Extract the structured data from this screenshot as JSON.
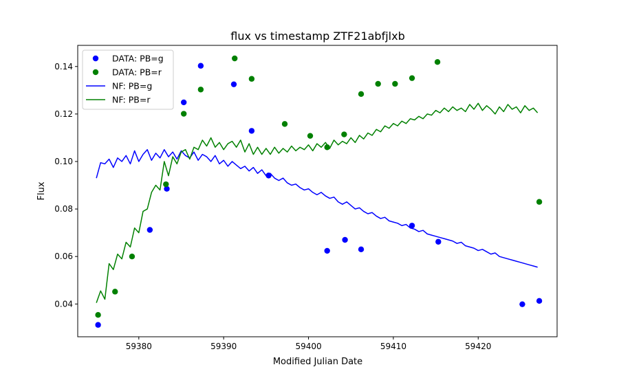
{
  "chart_data": {
    "type": "scatter",
    "title": "flux vs timestamp ZTF21abfjlxb",
    "xlabel": "Modified Julian Date",
    "ylabel": "Flux",
    "xlim": [
      59372.8,
      59429.3
    ],
    "ylim": [
      0.0262,
      0.1489
    ],
    "xticks": [
      59380,
      59390,
      59400,
      59410,
      59420
    ],
    "xtick_labels": [
      "59380",
      "59390",
      "59400",
      "59410",
      "59420"
    ],
    "yticks": [
      0.04,
      0.06,
      0.08,
      0.1,
      0.12,
      0.14
    ],
    "ytick_labels": [
      "0.04",
      "0.06",
      "0.08",
      "0.10",
      "0.12",
      "0.14"
    ],
    "grid": false,
    "legend_position": "upper-left",
    "legend": [
      "DATA: PB=g",
      "DATA: PB=r",
      "NF: PB=g",
      "NF: PB=r"
    ],
    "colors": {
      "g": "#0000ff",
      "r": "#008000"
    },
    "series": [
      {
        "name": "DATA: PB=g",
        "kind": "scatter",
        "color": "#0000ff",
        "x": [
          59375.2,
          59381.3,
          59383.3,
          59385.3,
          59387.3,
          59391.2,
          59393.3,
          59395.3,
          59402.2,
          59404.3,
          59406.2,
          59412.2,
          59415.3,
          59425.2,
          59427.2
        ],
        "y": [
          0.0312,
          0.0712,
          0.0885,
          0.1249,
          0.1403,
          0.1325,
          0.1129,
          0.0941,
          0.0624,
          0.067,
          0.063,
          0.073,
          0.0662,
          0.0399,
          0.0413
        ]
      },
      {
        "name": "DATA: PB=r",
        "kind": "scatter",
        "color": "#008000",
        "x": [
          59375.2,
          59377.2,
          59379.2,
          59383.2,
          59385.3,
          59387.3,
          59391.3,
          59393.3,
          59397.2,
          59400.2,
          59402.2,
          59404.2,
          59406.2,
          59408.2,
          59410.2,
          59412.2,
          59415.2,
          59427.2
        ],
        "y": [
          0.0354,
          0.0452,
          0.06,
          0.0904,
          0.1201,
          0.1303,
          0.1434,
          0.1348,
          0.1158,
          0.1108,
          0.106,
          0.1114,
          0.1284,
          0.1327,
          0.1327,
          0.1351,
          0.1419,
          0.083
        ]
      },
      {
        "name": "NF: PB=g",
        "kind": "line",
        "color": "#0000ff",
        "x": [
          59375.0,
          59375.5,
          59376.0,
          59376.5,
          59377.0,
          59377.5,
          59378.0,
          59378.5,
          59379.0,
          59379.5,
          59380.0,
          59380.5,
          59381.0,
          59381.5,
          59382.0,
          59382.5,
          59383.0,
          59383.5,
          59384.0,
          59384.5,
          59385.0,
          59385.5,
          59386.0,
          59386.5,
          59387.0,
          59387.5,
          59388.0,
          59388.5,
          59389.0,
          59389.5,
          59390.0,
          59390.5,
          59391.0,
          59391.5,
          59392.0,
          59392.5,
          59393.0,
          59393.5,
          59394.0,
          59394.5,
          59395.0,
          59395.5,
          59396.0,
          59396.5,
          59397.0,
          59397.5,
          59398.0,
          59398.5,
          59399.0,
          59399.5,
          59400.0,
          59400.5,
          59401.0,
          59401.5,
          59402.0,
          59402.5,
          59403.0,
          59403.5,
          59404.0,
          59404.5,
          59405.0,
          59405.5,
          59406.0,
          59406.5,
          59407.0,
          59407.5,
          59408.0,
          59408.5,
          59409.0,
          59409.5,
          59410.0,
          59410.5,
          59411.0,
          59411.5,
          59412.0,
          59412.5,
          59413.0,
          59413.5,
          59414.0,
          59414.5,
          59415.0,
          59415.5,
          59416.0,
          59416.5,
          59417.0,
          59417.5,
          59418.0,
          59418.5,
          59419.0,
          59419.5,
          59420.0,
          59420.5,
          59421.0,
          59421.5,
          59422.0,
          59422.5,
          59423.0,
          59423.5,
          59424.0,
          59424.5,
          59425.0,
          59425.5,
          59426.0,
          59426.5,
          59427.0
        ],
        "y": [
          0.093,
          0.0995,
          0.099,
          0.101,
          0.0975,
          0.1015,
          0.1,
          0.1025,
          0.099,
          0.1045,
          0.1,
          0.103,
          0.105,
          0.1005,
          0.1035,
          0.1015,
          0.105,
          0.102,
          0.104,
          0.101,
          0.1045,
          0.1025,
          0.1015,
          0.104,
          0.1005,
          0.103,
          0.102,
          0.1,
          0.1025,
          0.099,
          0.1005,
          0.098,
          0.1,
          0.0985,
          0.097,
          0.098,
          0.096,
          0.0975,
          0.095,
          0.0965,
          0.094,
          0.095,
          0.093,
          0.092,
          0.093,
          0.091,
          0.09,
          0.0905,
          0.089,
          0.088,
          0.0885,
          0.087,
          0.086,
          0.087,
          0.0855,
          0.0845,
          0.085,
          0.083,
          0.082,
          0.083,
          0.0815,
          0.08,
          0.0805,
          0.079,
          0.078,
          0.0785,
          0.077,
          0.076,
          0.0765,
          0.075,
          0.0745,
          0.074,
          0.073,
          0.0735,
          0.072,
          0.0715,
          0.0705,
          0.071,
          0.0695,
          0.069,
          0.0685,
          0.068,
          0.0675,
          0.067,
          0.0665,
          0.0655,
          0.066,
          0.0645,
          0.064,
          0.0635,
          0.0625,
          0.063,
          0.062,
          0.061,
          0.0615,
          0.06,
          0.0595,
          0.059,
          0.0585,
          0.058,
          0.0575,
          0.057,
          0.0565,
          0.056,
          0.0555
        ]
      },
      {
        "name": "NF: PB=r",
        "kind": "line",
        "color": "#008000",
        "x": [
          59375.0,
          59375.5,
          59376.0,
          59376.5,
          59377.0,
          59377.5,
          59378.0,
          59378.5,
          59379.0,
          59379.5,
          59380.0,
          59380.5,
          59381.0,
          59381.5,
          59382.0,
          59382.5,
          59383.0,
          59383.5,
          59384.0,
          59384.5,
          59385.0,
          59385.5,
          59386.0,
          59386.5,
          59387.0,
          59387.5,
          59388.0,
          59388.5,
          59389.0,
          59389.5,
          59390.0,
          59390.5,
          59391.0,
          59391.5,
          59392.0,
          59392.5,
          59393.0,
          59393.5,
          59394.0,
          59394.5,
          59395.0,
          59395.5,
          59396.0,
          59396.5,
          59397.0,
          59397.5,
          59398.0,
          59398.5,
          59399.0,
          59399.5,
          59400.0,
          59400.5,
          59401.0,
          59401.5,
          59402.0,
          59402.5,
          59403.0,
          59403.5,
          59404.0,
          59404.5,
          59405.0,
          59405.5,
          59406.0,
          59406.5,
          59407.0,
          59407.5,
          59408.0,
          59408.5,
          59409.0,
          59409.5,
          59410.0,
          59410.5,
          59411.0,
          59411.5,
          59412.0,
          59412.5,
          59413.0,
          59413.5,
          59414.0,
          59414.5,
          59415.0,
          59415.5,
          59416.0,
          59416.5,
          59417.0,
          59417.5,
          59418.0,
          59418.5,
          59419.0,
          59419.5,
          59420.0,
          59420.5,
          59421.0,
          59421.5,
          59422.0,
          59422.5,
          59423.0,
          59423.5,
          59424.0,
          59424.5,
          59425.0,
          59425.5,
          59426.0,
          59426.5,
          59427.0
        ],
        "y": [
          0.0405,
          0.0455,
          0.042,
          0.057,
          0.0545,
          0.061,
          0.059,
          0.066,
          0.064,
          0.072,
          0.07,
          0.079,
          0.08,
          0.087,
          0.09,
          0.088,
          0.1,
          0.094,
          0.102,
          0.099,
          0.104,
          0.105,
          0.101,
          0.106,
          0.105,
          0.109,
          0.1065,
          0.11,
          0.106,
          0.108,
          0.105,
          0.1075,
          0.1085,
          0.106,
          0.109,
          0.104,
          0.1075,
          0.103,
          0.106,
          0.103,
          0.1055,
          0.103,
          0.106,
          0.1035,
          0.1055,
          0.104,
          0.1065,
          0.1045,
          0.106,
          0.105,
          0.107,
          0.1045,
          0.1075,
          0.106,
          0.108,
          0.1055,
          0.109,
          0.107,
          0.1085,
          0.1075,
          0.11,
          0.108,
          0.111,
          0.1095,
          0.112,
          0.111,
          0.1135,
          0.1125,
          0.115,
          0.114,
          0.116,
          0.115,
          0.117,
          0.116,
          0.118,
          0.1175,
          0.119,
          0.118,
          0.12,
          0.1195,
          0.1215,
          0.1205,
          0.1225,
          0.121,
          0.123,
          0.1215,
          0.1225,
          0.121,
          0.124,
          0.122,
          0.1245,
          0.1215,
          0.1235,
          0.122,
          0.12,
          0.123,
          0.121,
          0.124,
          0.122,
          0.123,
          0.1205,
          0.1235,
          0.1215,
          0.1225,
          0.1205
        ]
      }
    ]
  }
}
